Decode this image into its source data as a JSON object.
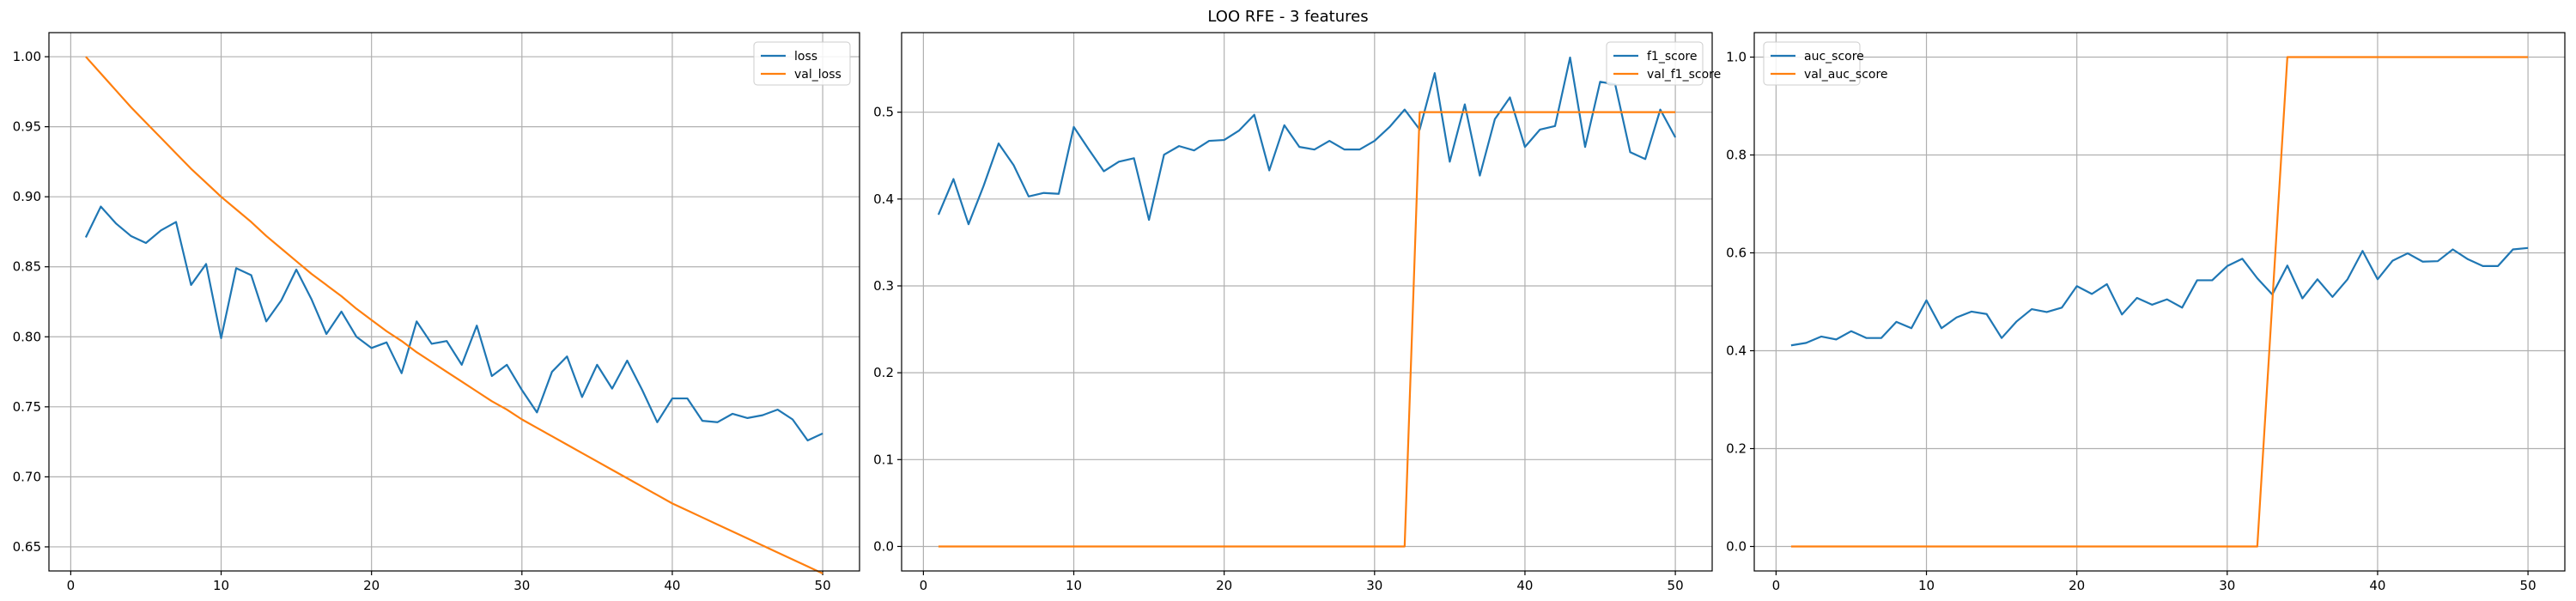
{
  "figure": {
    "title": "LOO RFE - 3 features"
  },
  "colors": {
    "blue": "#1f77b4",
    "orange": "#ff7f0e",
    "grid": "#b0b0b0"
  },
  "chart_data": [
    {
      "type": "line",
      "title": "",
      "xlabel": "",
      "ylabel": "",
      "xlim": [
        -1.45,
        52.45
      ],
      "ylim": [
        0.6328,
        1.0172
      ],
      "xticks": [
        0,
        10,
        20,
        30,
        40,
        50
      ],
      "yticks": [
        0.65,
        0.7,
        0.75,
        0.8,
        0.85,
        0.9,
        0.95,
        1.0
      ],
      "ytick_decimals": 2,
      "grid": true,
      "legend": "top-right",
      "x": [
        1,
        2,
        3,
        4,
        5,
        6,
        7,
        8,
        9,
        10,
        11,
        12,
        13,
        14,
        15,
        16,
        17,
        18,
        19,
        20,
        21,
        22,
        23,
        24,
        25,
        26,
        27,
        28,
        29,
        30,
        31,
        32,
        33,
        34,
        35,
        36,
        37,
        38,
        39,
        40,
        41,
        42,
        43,
        44,
        45,
        46,
        47,
        48,
        49,
        50
      ],
      "series": [
        {
          "name": "loss",
          "color": "#1f77b4",
          "values": [
            0.871,
            0.893,
            0.881,
            0.872,
            0.867,
            0.876,
            0.882,
            0.837,
            0.852,
            0.799,
            0.849,
            0.844,
            0.811,
            0.826,
            0.848,
            0.827,
            0.802,
            0.818,
            0.8,
            0.792,
            0.796,
            0.774,
            0.811,
            0.795,
            0.797,
            0.78,
            0.808,
            0.772,
            0.78,
            0.762,
            0.746,
            0.775,
            0.786,
            0.757,
            0.78,
            0.763,
            0.783,
            0.762,
            0.739,
            0.756,
            0.756,
            0.74,
            0.739,
            0.745,
            0.742,
            0.744,
            0.748,
            0.741,
            0.726,
            0.731
          ]
        },
        {
          "name": "val_loss",
          "color": "#ff7f0e",
          "values": [
            1.0,
            0.988,
            0.976,
            0.964,
            0.953,
            0.942,
            0.931,
            0.92,
            0.91,
            0.9,
            0.891,
            0.882,
            0.872,
            0.863,
            0.854,
            0.845,
            0.837,
            0.829,
            0.82,
            0.812,
            0.804,
            0.797,
            0.789,
            0.782,
            0.775,
            0.768,
            0.761,
            0.754,
            0.748,
            0.741,
            0.735,
            0.729,
            0.723,
            0.717,
            0.711,
            0.705,
            0.699,
            0.693,
            0.687,
            0.681,
            0.676,
            0.671,
            0.666,
            0.661,
            0.656,
            0.651,
            0.646,
            0.641,
            0.636,
            0.631
          ]
        }
      ]
    },
    {
      "type": "line",
      "title": "",
      "xlabel": "",
      "ylabel": "",
      "xlim": [
        -1.45,
        52.45
      ],
      "ylim": [
        -0.0282,
        0.5916
      ],
      "xticks": [
        0,
        10,
        20,
        30,
        40,
        50
      ],
      "yticks": [
        0.0,
        0.1,
        0.2,
        0.3,
        0.4,
        0.5
      ],
      "ytick_decimals": 1,
      "grid": true,
      "legend": "top-right",
      "x": [
        1,
        2,
        3,
        4,
        5,
        6,
        7,
        8,
        9,
        10,
        11,
        12,
        13,
        14,
        15,
        16,
        17,
        18,
        19,
        20,
        21,
        22,
        23,
        24,
        25,
        26,
        27,
        28,
        29,
        30,
        31,
        32,
        33,
        34,
        35,
        36,
        37,
        38,
        39,
        40,
        41,
        42,
        43,
        44,
        45,
        46,
        47,
        48,
        49,
        50
      ],
      "series": [
        {
          "name": "f1_score",
          "color": "#1f77b4",
          "values": [
            0.382,
            0.423,
            0.371,
            0.415,
            0.464,
            0.439,
            0.403,
            0.407,
            0.406,
            0.483,
            0.457,
            0.432,
            0.443,
            0.447,
            0.376,
            0.451,
            0.461,
            0.456,
            0.467,
            0.468,
            0.479,
            0.497,
            0.433,
            0.485,
            0.46,
            0.457,
            0.467,
            0.457,
            0.457,
            0.467,
            0.483,
            0.503,
            0.48,
            0.545,
            0.443,
            0.509,
            0.427,
            0.492,
            0.517,
            0.46,
            0.48,
            0.484,
            0.563,
            0.46,
            0.535,
            0.532,
            0.454,
            0.446,
            0.503,
            0.471
          ]
        },
        {
          "name": "val_f1_score",
          "color": "#ff7f0e",
          "values": [
            0,
            0,
            0,
            0,
            0,
            0,
            0,
            0,
            0,
            0,
            0,
            0,
            0,
            0,
            0,
            0,
            0,
            0,
            0,
            0,
            0,
            0,
            0,
            0,
            0,
            0,
            0,
            0,
            0,
            0,
            0,
            0,
            0.5,
            0.5,
            0.5,
            0.5,
            0.5,
            0.5,
            0.5,
            0.5,
            0.5,
            0.5,
            0.5,
            0.5,
            0.5,
            0.5,
            0.5,
            0.5,
            0.5,
            0.5
          ]
        }
      ]
    },
    {
      "type": "line",
      "title": "",
      "xlabel": "",
      "ylabel": "",
      "xlim": [
        -1.45,
        52.45
      ],
      "ylim": [
        -0.05,
        1.05
      ],
      "xticks": [
        0,
        10,
        20,
        30,
        40,
        50
      ],
      "yticks": [
        0.0,
        0.2,
        0.4,
        0.6,
        0.8,
        1.0
      ],
      "ytick_decimals": 1,
      "grid": true,
      "legend": "top-left",
      "x": [
        1,
        2,
        3,
        4,
        5,
        6,
        7,
        8,
        9,
        10,
        11,
        12,
        13,
        14,
        15,
        16,
        17,
        18,
        19,
        20,
        21,
        22,
        23,
        24,
        25,
        26,
        27,
        28,
        29,
        30,
        31,
        32,
        33,
        34,
        35,
        36,
        37,
        38,
        39,
        40,
        41,
        42,
        43,
        44,
        45,
        46,
        47,
        48,
        49,
        50
      ],
      "series": [
        {
          "name": "auc_score",
          "color": "#1f77b4",
          "values": [
            0.411,
            0.416,
            0.429,
            0.423,
            0.44,
            0.426,
            0.426,
            0.459,
            0.446,
            0.503,
            0.446,
            0.468,
            0.48,
            0.475,
            0.426,
            0.46,
            0.485,
            0.479,
            0.488,
            0.532,
            0.516,
            0.536,
            0.474,
            0.508,
            0.494,
            0.505,
            0.488,
            0.544,
            0.544,
            0.573,
            0.588,
            0.548,
            0.515,
            0.574,
            0.507,
            0.546,
            0.51,
            0.546,
            0.604,
            0.546,
            0.584,
            0.599,
            0.582,
            0.583,
            0.607,
            0.587,
            0.573,
            0.573,
            0.607,
            0.61
          ]
        },
        {
          "name": "val_auc_score",
          "color": "#ff7f0e",
          "values": [
            0,
            0,
            0,
            0,
            0,
            0,
            0,
            0,
            0,
            0,
            0,
            0,
            0,
            0,
            0,
            0,
            0,
            0,
            0,
            0,
            0,
            0,
            0,
            0,
            0,
            0,
            0,
            0,
            0,
            0,
            0,
            0,
            0.5,
            1,
            1,
            1,
            1,
            1,
            1,
            1,
            1,
            1,
            1,
            1,
            1,
            1,
            1,
            1,
            1,
            1
          ]
        }
      ]
    }
  ]
}
